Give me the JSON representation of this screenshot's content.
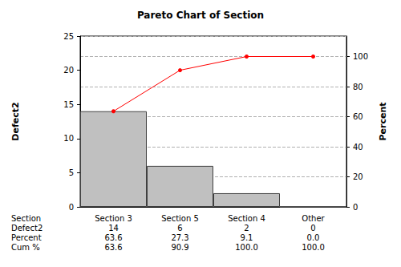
{
  "chart_data": {
    "type": "bar",
    "title": "Pareto Chart of Section",
    "y_label": "Defect2",
    "y2_label": "Percent",
    "categories": [
      "Section 3",
      "Section 5",
      "Section 4",
      "Other"
    ],
    "ylim": [
      0,
      25
    ],
    "yticks": [
      0,
      5,
      10,
      15,
      20,
      25
    ],
    "y2lim": [
      0,
      113.6
    ],
    "y2ticks": [
      0,
      20,
      40,
      60,
      80,
      100
    ],
    "grid": true,
    "series": [
      {
        "name": "Defect2",
        "type": "bar",
        "color": "#c0c0c0",
        "values": [
          14,
          6,
          2,
          0
        ]
      },
      {
        "name": "Cum %",
        "type": "line",
        "axis": "y2",
        "color": "#ff0000",
        "marker": "circle",
        "line_style": "solid",
        "values": [
          63.6,
          90.9,
          100,
          100
        ]
      }
    ],
    "table": {
      "header": "Section",
      "rows": [
        {
          "label": "Defect2",
          "cells": [
            "14",
            "6",
            "2",
            "0"
          ]
        },
        {
          "label": "Percent",
          "cells": [
            "63.6",
            "27.3",
            "9.1",
            "0.0"
          ]
        },
        {
          "label": "Cum %",
          "cells": [
            "63.6",
            "90.9",
            "100.0",
            "100.0"
          ]
        }
      ]
    }
  }
}
